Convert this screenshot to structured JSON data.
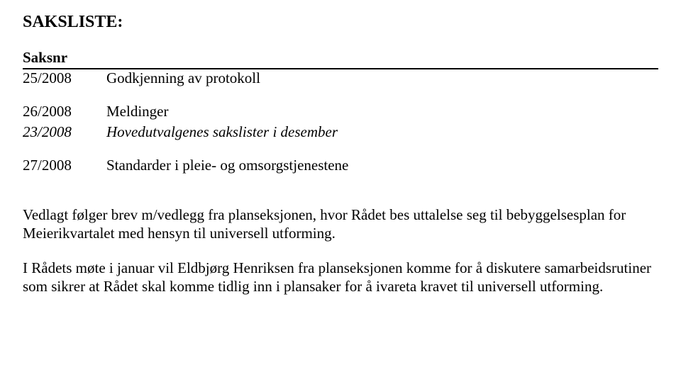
{
  "heading": "SAKSLISTE:",
  "table": {
    "header": {
      "saksnr": "Saksnr"
    },
    "rows": [
      {
        "num": "25/2008",
        "title": "Godkjenning av protokoll",
        "italic": false,
        "gap": false
      },
      {
        "num": "26/2008",
        "title": "Meldinger",
        "italic": false,
        "gap": true
      },
      {
        "num": "23/2008",
        "title": "Hovedutvalgenes sakslister i desember",
        "italic": true,
        "gap": false
      },
      {
        "num": "27/2008",
        "title": "Standarder i pleie- og omsorgstjenestene",
        "italic": false,
        "gap": true
      }
    ]
  },
  "paragraphs": [
    "Vedlagt følger brev m/vedlegg fra planseksjonen, hvor Rådet bes uttalelse seg til bebyggelsesplan for Meierikvartalet med hensyn til universell utforming.",
    "I Rådets møte i januar vil Eldbjørg Henriksen fra planseksjonen komme for å diskutere samarbeidsrutiner som sikrer at Rådet skal komme tidlig inn i plansaker for å ivareta kravet til universell utforming."
  ]
}
